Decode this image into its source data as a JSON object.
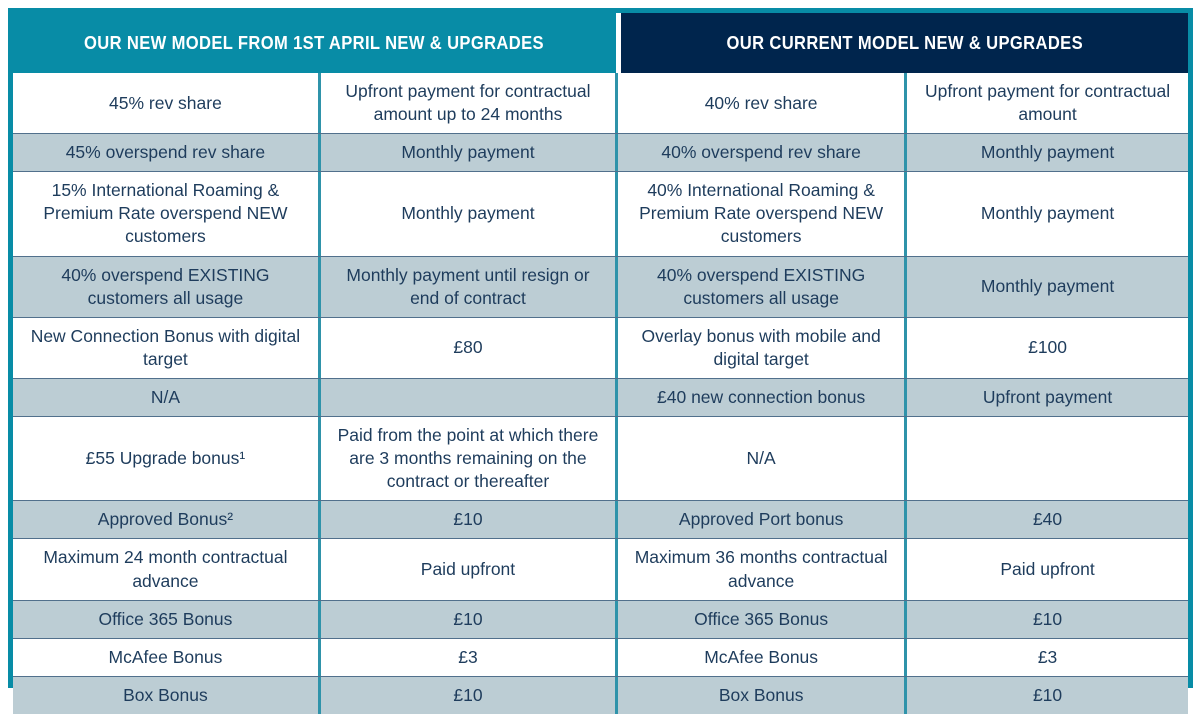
{
  "table": {
    "headers": [
      {
        "label": "OUR NEW MODEL FROM 1ST APRIL NEW & UPGRADES",
        "theme": "teal"
      },
      {
        "label": "OUR CURRENT MODEL NEW & UPGRADES",
        "theme": "navy"
      }
    ],
    "rows": [
      {
        "shaded": false,
        "cells": [
          "45% rev share",
          "Upfront payment for contractual amount up to 24 months",
          "40% rev share",
          "Upfront payment for contractual amount"
        ]
      },
      {
        "shaded": true,
        "cells": [
          "45% overspend rev share",
          "Monthly payment",
          "40% overspend rev share",
          "Monthly payment"
        ]
      },
      {
        "shaded": false,
        "cells": [
          "15% International Roaming & Premium Rate overspend NEW customers",
          "Monthly payment",
          "40% International Roaming & Premium Rate overspend NEW customers",
          "Monthly payment"
        ]
      },
      {
        "shaded": true,
        "cells": [
          "40% overspend EXISTING customers all usage",
          "Monthly payment until resign or end of contract",
          "40% overspend EXISTING customers all usage",
          "Monthly payment"
        ]
      },
      {
        "shaded": false,
        "cells": [
          "New Connection Bonus with digital target",
          "£80",
          "Overlay bonus with mobile and digital target",
          "£100"
        ]
      },
      {
        "shaded": true,
        "cells": [
          "N/A",
          "",
          "£40 new connection bonus",
          "Upfront payment"
        ]
      },
      {
        "shaded": false,
        "cells": [
          "£55 Upgrade bonus¹",
          "Paid from the point at which there are 3 months remaining on the contract or thereafter",
          "N/A",
          ""
        ]
      },
      {
        "shaded": true,
        "cells": [
          "Approved Bonus²",
          "£10",
          "Approved Port bonus",
          "£40"
        ]
      },
      {
        "shaded": false,
        "cells": [
          "Maximum 24 month contractual advance",
          "Paid upfront",
          "Maximum 36 months contractual advance",
          "Paid upfront"
        ]
      },
      {
        "shaded": true,
        "cells": [
          "Office 365 Bonus",
          "£10",
          "Office 365 Bonus",
          "£10"
        ]
      },
      {
        "shaded": false,
        "cells": [
          "McAfee Bonus",
          "£3",
          "McAfee Bonus",
          "£3"
        ]
      },
      {
        "shaded": true,
        "cells": [
          "Box Bonus",
          "£10",
          "Box Bonus",
          "£10"
        ]
      }
    ],
    "colors": {
      "teal_header": "#088CA6",
      "navy_header": "#00254D",
      "shaded_row": "#BCCDD4",
      "body_text": "#1E3C5C",
      "column_divider": "#2F93AA",
      "row_divider": "#51708C",
      "outer_border": "#088CA6"
    }
  }
}
